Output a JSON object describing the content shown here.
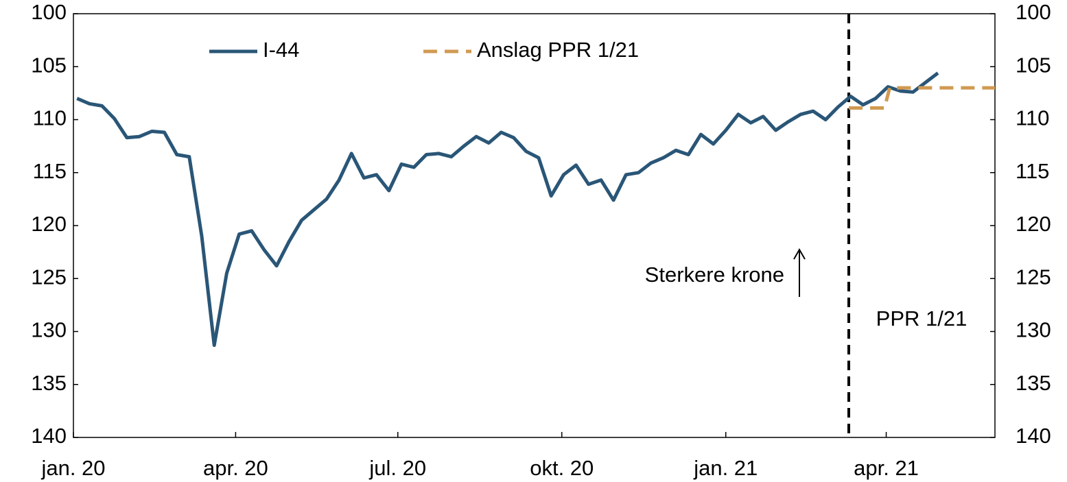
{
  "chart_data": {
    "type": "line",
    "x": [
      "2020-01-03",
      "2020-01-10",
      "2020-01-17",
      "2020-01-24",
      "2020-01-31",
      "2020-02-07",
      "2020-02-14",
      "2020-02-21",
      "2020-02-28",
      "2020-03-06",
      "2020-03-13",
      "2020-03-20",
      "2020-03-27",
      "2020-04-03",
      "2020-04-10",
      "2020-04-17",
      "2020-04-24",
      "2020-05-01",
      "2020-05-08",
      "2020-05-15",
      "2020-05-22",
      "2020-05-29",
      "2020-06-05",
      "2020-06-12",
      "2020-06-19",
      "2020-06-26",
      "2020-07-03",
      "2020-07-10",
      "2020-07-17",
      "2020-07-24",
      "2020-07-31",
      "2020-08-07",
      "2020-08-14",
      "2020-08-21",
      "2020-08-28",
      "2020-09-04",
      "2020-09-11",
      "2020-09-18",
      "2020-09-25",
      "2020-10-02",
      "2020-10-09",
      "2020-10-16",
      "2020-10-23",
      "2020-10-30",
      "2020-11-06",
      "2020-11-13",
      "2020-11-20",
      "2020-11-27",
      "2020-12-04",
      "2020-12-11",
      "2020-12-18",
      "2020-12-25",
      "2021-01-01",
      "2021-01-08",
      "2021-01-15",
      "2021-01-22",
      "2021-01-29",
      "2021-02-05",
      "2021-02-12",
      "2021-02-19",
      "2021-02-26",
      "2021-03-05",
      "2021-03-12",
      "2021-03-19",
      "2021-03-26",
      "2021-04-02",
      "2021-04-09",
      "2021-04-16",
      "2021-04-23",
      "2021-04-30"
    ],
    "series": [
      {
        "name": "I-44",
        "color": "#2a5677",
        "style": "solid",
        "values": [
          108.0,
          108.5,
          108.7,
          109.9,
          111.7,
          111.6,
          111.1,
          111.2,
          113.3,
          113.5,
          121.0,
          131.3,
          124.5,
          120.8,
          120.5,
          122.3,
          123.8,
          121.5,
          119.5,
          118.5,
          117.5,
          115.7,
          113.2,
          115.5,
          115.2,
          116.7,
          114.2,
          114.5,
          113.3,
          113.2,
          113.5,
          112.5,
          111.6,
          112.2,
          111.2,
          111.7,
          113.0,
          113.6,
          117.2,
          115.2,
          114.3,
          116.1,
          115.7,
          117.6,
          115.2,
          115.0,
          114.1,
          113.6,
          112.9,
          113.3,
          111.4,
          112.3,
          111.0,
          109.5,
          110.3,
          109.7,
          111.0,
          110.2,
          109.5,
          109.2,
          110.0,
          108.8,
          107.8,
          108.6,
          108.0,
          106.9,
          107.3,
          107.4,
          106.5,
          105.6
        ]
      },
      {
        "name": "Anslag PPR 1/21",
        "color": "#d09a52",
        "style": "dashed",
        "x": [
          "2021-03-11",
          "2021-03-31",
          "2021-04-03",
          "2021-06-01"
        ],
        "values": [
          108.9,
          108.9,
          107.0,
          107.0
        ]
      }
    ],
    "xlim": [
      "2020-01-01",
      "2021-06-01"
    ],
    "xticks": [
      {
        "value": "2020-01-01",
        "label": "jan. 20"
      },
      {
        "value": "2020-04-01",
        "label": "apr. 20"
      },
      {
        "value": "2020-07-01",
        "label": "jul. 20"
      },
      {
        "value": "2020-10-01",
        "label": "okt. 20"
      },
      {
        "value": "2021-01-01",
        "label": "jan. 21"
      },
      {
        "value": "2021-04-01",
        "label": "apr. 21"
      }
    ],
    "ylim": [
      100,
      140
    ],
    "yticks": [
      100,
      105,
      110,
      115,
      120,
      125,
      130,
      135,
      140
    ],
    "y2lim": [
      100,
      140
    ],
    "y2ticks": [
      100,
      105,
      110,
      115,
      120,
      125,
      130,
      135,
      140
    ],
    "y_inverted": true,
    "vline": {
      "x": "2021-03-11",
      "label": "PPR 1/21"
    },
    "annotation": "Sterkere krone",
    "legend": "top"
  }
}
